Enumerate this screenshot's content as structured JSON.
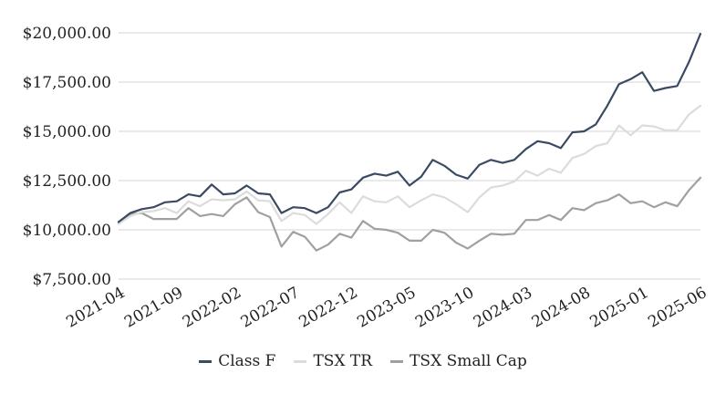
{
  "chart_data": {
    "type": "line",
    "title": "",
    "xlabel": "",
    "ylabel": "",
    "ylim": [
      7500,
      20000
    ],
    "y_ticks": [
      "$7,500.00",
      "$10,000.00",
      "$12,500.00",
      "$15,000.00",
      "$17,500.00",
      "$20,000.00"
    ],
    "y_tick_values": [
      7500,
      10000,
      12500,
      15000,
      17500,
      20000
    ],
    "x_ticks": [
      "2021-04",
      "2021-09",
      "2022-02",
      "2022-07",
      "2022-12",
      "2023-05",
      "2023-10",
      "2024-03",
      "2024-08",
      "2025-01",
      "2025-06"
    ],
    "x_start": "2021-04",
    "x_end": "2025-06",
    "grid": "horizontal",
    "legend_position": "bottom",
    "series": [
      {
        "name": "Class F",
        "color": "#3b4a63",
        "values": [
          10400,
          10850,
          11050,
          11150,
          11400,
          11450,
          11800,
          11700,
          12300,
          11800,
          11850,
          12250,
          11850,
          11800,
          10850,
          11150,
          11100,
          10850,
          11150,
          11900,
          12050,
          12650,
          12850,
          12750,
          12950,
          12250,
          12700,
          13550,
          13250,
          12800,
          12600,
          13300,
          13550,
          13400,
          13550,
          14100,
          14500,
          14400,
          14150,
          14950,
          15000,
          15350,
          16300,
          17400,
          17650,
          18000,
          17050,
          17200,
          17300,
          18500,
          19950
        ]
      },
      {
        "name": "TSX TR",
        "color": "#dcdcdc",
        "values": [
          10300,
          10700,
          10900,
          10950,
          11100,
          10850,
          11450,
          11200,
          11550,
          11500,
          11550,
          11950,
          11500,
          11450,
          10450,
          10850,
          10750,
          10300,
          10800,
          11400,
          10850,
          11700,
          11450,
          11400,
          11700,
          11150,
          11500,
          11800,
          11650,
          11300,
          10900,
          11650,
          12150,
          12250,
          12450,
          13000,
          12750,
          13100,
          12900,
          13650,
          13850,
          14250,
          14400,
          15300,
          14800,
          15300,
          15250,
          15050,
          15050,
          15850,
          16300
        ]
      },
      {
        "name": "TSX Small Cap",
        "color": "#a0a0a0",
        "values": [
          10350,
          10800,
          10850,
          10550,
          10550,
          10550,
          11100,
          10700,
          10800,
          10700,
          11300,
          11650,
          10900,
          10650,
          9150,
          9900,
          9650,
          8950,
          9250,
          9800,
          9600,
          10450,
          10050,
          10000,
          9850,
          9450,
          9450,
          10000,
          9850,
          9350,
          9050,
          9450,
          9800,
          9750,
          9800,
          10500,
          10500,
          10750,
          10500,
          11100,
          11000,
          11350,
          11500,
          11800,
          11350,
          11450,
          11150,
          11400,
          11200,
          12000,
          12650
        ]
      }
    ]
  }
}
